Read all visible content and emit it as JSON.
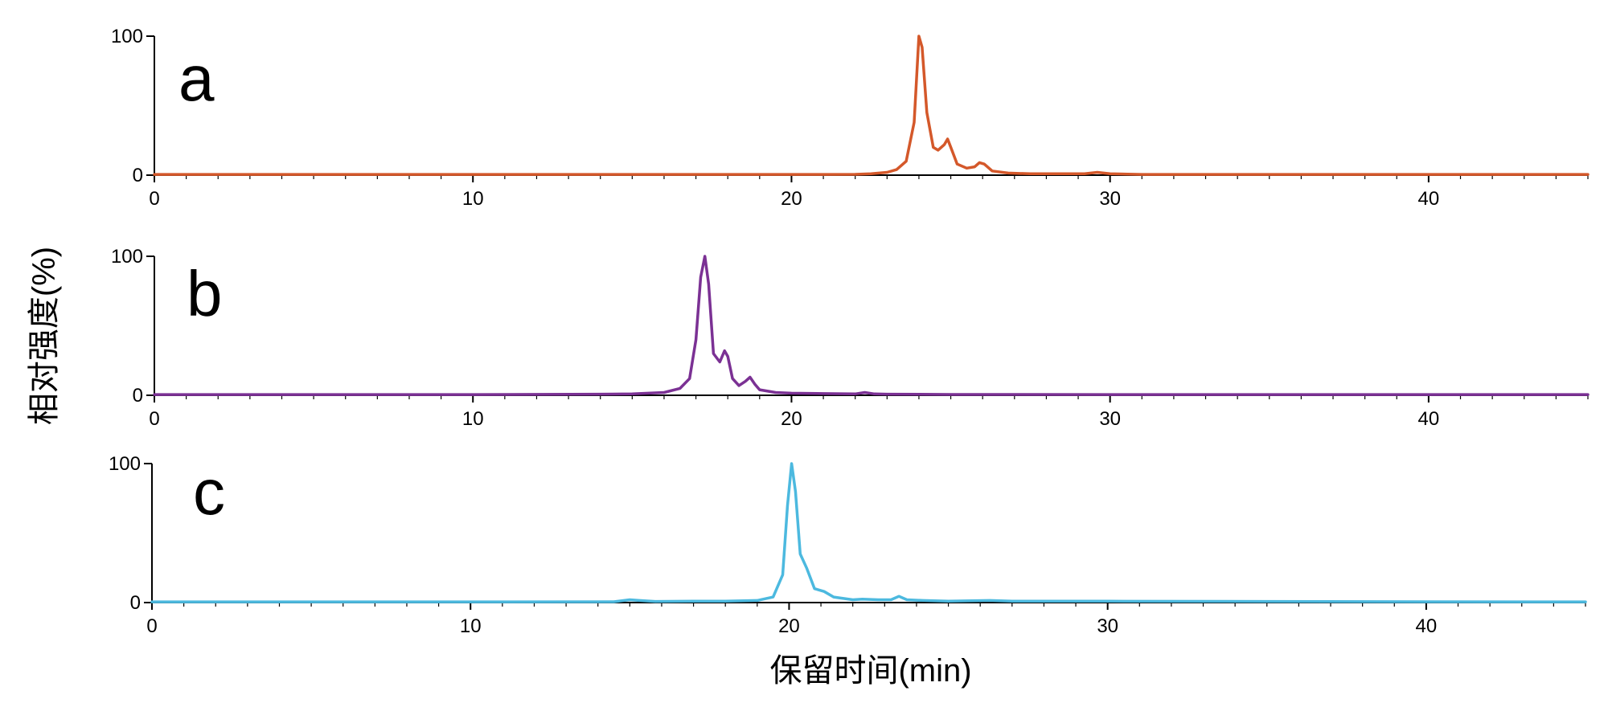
{
  "figure": {
    "ylabel": "相对强度(%)",
    "xlabel": "保留时间(min)"
  },
  "chart_data": [
    {
      "type": "line",
      "panel_label": "a",
      "color": "#D4582A",
      "xlim": [
        0,
        45
      ],
      "ylim": [
        0,
        100
      ],
      "x_ticks": [
        "0",
        "10",
        "20",
        "30",
        "40"
      ],
      "y_ticks": [
        "0",
        "100"
      ],
      "x": [
        0,
        5,
        10,
        15,
        20,
        21,
        22,
        22.5,
        23,
        23.3,
        23.6,
        23.85,
        24.0,
        24.1,
        24.25,
        24.45,
        24.6,
        24.8,
        24.9,
        25.0,
        25.2,
        25.5,
        25.75,
        25.9,
        26.05,
        26.3,
        26.8,
        27.5,
        28.5,
        29.2,
        29.6,
        30.0,
        31,
        35,
        40,
        45
      ],
      "y": [
        0.5,
        0.5,
        0.5,
        0.5,
        0.5,
        0.5,
        0.6,
        1,
        2,
        4,
        10,
        38,
        100,
        92,
        45,
        20,
        18,
        22,
        26,
        20,
        8,
        5,
        6,
        9,
        8,
        3,
        1.5,
        1,
        1,
        1,
        2,
        1,
        0.5,
        0.5,
        0.5,
        0.5
      ]
    },
    {
      "type": "line",
      "panel_label": "b",
      "color": "#7B3194",
      "xlim": [
        0,
        45
      ],
      "ylim": [
        0,
        100
      ],
      "x_ticks": [
        "0",
        "10",
        "20",
        "30",
        "40"
      ],
      "y_ticks": [
        "0",
        "100"
      ],
      "x": [
        0,
        5,
        10,
        14,
        15,
        15.5,
        16,
        16.5,
        16.8,
        17.0,
        17.15,
        17.28,
        17.4,
        17.55,
        17.75,
        17.9,
        18.0,
        18.15,
        18.35,
        18.55,
        18.7,
        18.85,
        19.0,
        19.5,
        20.0,
        21,
        22,
        22.3,
        22.6,
        23,
        25,
        30,
        35,
        40,
        45
      ],
      "y": [
        0.5,
        0.5,
        0.5,
        0.8,
        1,
        1.5,
        2,
        5,
        12,
        40,
        85,
        100,
        80,
        30,
        24,
        32,
        28,
        12,
        7,
        10,
        13,
        8,
        4,
        2,
        1.5,
        1.2,
        1,
        2,
        1,
        0.8,
        0.6,
        0.5,
        0.5,
        0.5,
        0.5
      ]
    },
    {
      "type": "line",
      "panel_label": "c",
      "color": "#4CB9DF",
      "xlim": [
        0,
        45
      ],
      "ylim": [
        0,
        100
      ],
      "x_ticks": [
        "0",
        "10",
        "20",
        "30",
        "40"
      ],
      "y_ticks": [
        "0",
        "100"
      ],
      "x": [
        0,
        5,
        10,
        14.5,
        15.0,
        15.3,
        15.8,
        17,
        18,
        19,
        19.5,
        19.8,
        19.95,
        20.08,
        20.2,
        20.35,
        20.55,
        20.8,
        21.1,
        21.4,
        22,
        22.3,
        22.8,
        23.2,
        23.45,
        23.7,
        24.2,
        25,
        26.3,
        27,
        30,
        35,
        40,
        45
      ],
      "y": [
        0.5,
        0.5,
        0.5,
        0.6,
        2,
        1.5,
        0.8,
        1,
        1,
        1.5,
        4,
        20,
        70,
        100,
        80,
        35,
        25,
        10,
        8,
        4,
        2,
        2.5,
        2,
        2,
        4.5,
        2,
        1.5,
        1,
        1.5,
        1,
        1,
        0.8,
        0.6,
        0.5
      ]
    }
  ]
}
